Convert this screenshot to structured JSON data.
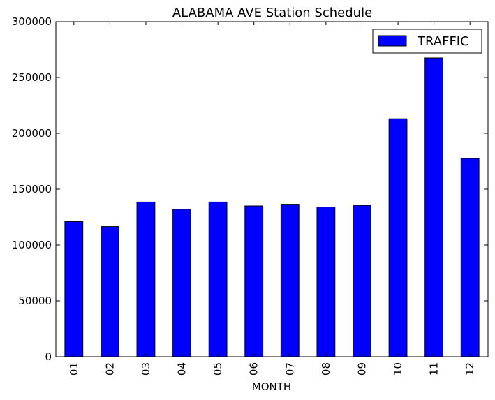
{
  "chart_data": {
    "type": "bar",
    "title": "ALABAMA AVE Station Schedule",
    "xlabel": "MONTH",
    "ylabel": "",
    "categories": [
      "01",
      "02",
      "03",
      "04",
      "05",
      "06",
      "07",
      "08",
      "09",
      "10",
      "11",
      "12"
    ],
    "series": [
      {
        "name": "TRAFFIC",
        "color": "#0000ff",
        "values": [
          121000,
          116500,
          138500,
          132000,
          138500,
          135000,
          136500,
          134000,
          135500,
          213000,
          267500,
          177500
        ]
      }
    ],
    "ylim": [
      0,
      300000
    ],
    "yticks": [
      0,
      50000,
      100000,
      150000,
      200000,
      250000,
      300000
    ],
    "ytick_labels": [
      "0",
      "50000",
      "100000",
      "150000",
      "200000",
      "250000",
      "300000"
    ],
    "legend_position": "top-right",
    "grid": false
  }
}
